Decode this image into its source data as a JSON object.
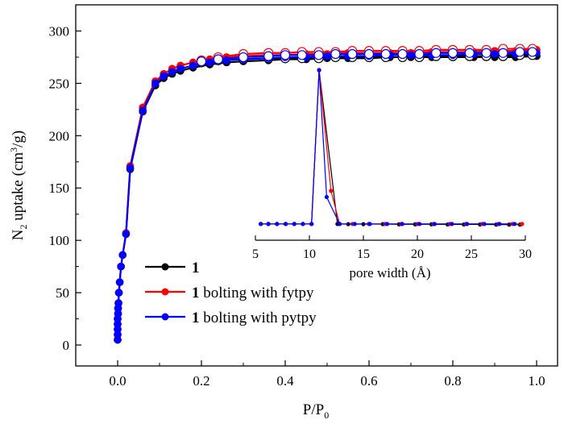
{
  "chart_data": [
    {
      "type": "line",
      "role": "main",
      "xlabel": "P/P",
      "xlabel_sub": "0",
      "ylabel_parts": [
        "N",
        "2",
        " uptake (cm",
        "3",
        "/g)"
      ],
      "xlim": [
        -0.1,
        1.05
      ],
      "ylim": [
        -20,
        325
      ],
      "xticks": [
        0.0,
        0.2,
        0.4,
        0.6,
        0.8,
        1.0
      ],
      "xtick_labels": [
        "0.0",
        "0.2",
        "0.4",
        "0.6",
        "0.8",
        "1.0"
      ],
      "yticks": [
        0,
        50,
        100,
        150,
        200,
        250,
        300
      ],
      "ytick_labels": [
        "0",
        "50",
        "100",
        "150",
        "200",
        "250",
        "300"
      ],
      "legend": {
        "placement": "bottom-left",
        "entries": [
          {
            "prefix": "1",
            "suffix": "",
            "color": "#000000"
          },
          {
            "prefix": "1",
            "suffix": " bolting with fytpy",
            "color": "#ff0000"
          },
          {
            "prefix": "1",
            "suffix": " bolting with pytpy",
            "color": "#0000ff"
          }
        ]
      },
      "series": [
        {
          "name": "1",
          "color": "#000000",
          "adsorption": {
            "x": [
              0.0,
              0.0,
              0.0,
              0.0,
              0.0,
              0.001,
              0.001,
              0.002,
              0.003,
              0.005,
              0.008,
              0.012,
              0.02,
              0.03,
              0.06,
              0.09,
              0.11,
              0.13,
              0.15,
              0.18,
              0.22,
              0.26,
              0.3,
              0.36,
              0.4,
              0.45,
              0.5,
              0.55,
              0.6,
              0.65,
              0.7,
              0.75,
              0.8,
              0.85,
              0.9,
              0.95,
              1.0
            ],
            "y": [
              5,
              10,
              15,
              20,
              25,
              30,
              35,
              40,
              50,
              60,
              75,
              86,
              106,
              168,
              223,
              248,
              255,
              259,
              262,
              265,
              268,
              270,
              271,
              272,
              273,
              273,
              274,
              274,
              274,
              275,
              275,
              275,
              275,
              275,
              275,
              275,
              276
            ]
          },
          "desorption": {
            "x": [
              0.99,
              0.96,
              0.92,
              0.88,
              0.84,
              0.8,
              0.76,
              0.72,
              0.68,
              0.64,
              0.6,
              0.56,
              0.52,
              0.48,
              0.44,
              0.4,
              0.36,
              0.3,
              0.24,
              0.2
            ],
            "y": [
              277,
              277,
              276,
              276,
              276,
              276,
              276,
              275,
              275,
              275,
              275,
              275,
              275,
              274,
              274,
              274,
              274,
              273,
              272,
              270
            ]
          }
        },
        {
          "name": "1 bolting with fytpy",
          "color": "#ff0000",
          "adsorption": {
            "x": [
              0.0,
              0.0,
              0.0,
              0.0,
              0.0,
              0.001,
              0.001,
              0.002,
              0.003,
              0.005,
              0.008,
              0.012,
              0.02,
              0.03,
              0.06,
              0.09,
              0.11,
              0.13,
              0.15,
              0.18,
              0.22,
              0.26,
              0.3,
              0.36,
              0.4,
              0.45,
              0.5,
              0.55,
              0.6,
              0.65,
              0.7,
              0.75,
              0.8,
              0.85,
              0.9,
              0.95,
              1.0
            ],
            "y": [
              5,
              10,
              15,
              20,
              25,
              30,
              35,
              40,
              50,
              60,
              75,
              86,
              107,
              171,
              227,
              252,
              259,
              264,
              267,
              270,
              273,
              275,
              276,
              277,
              277,
              278,
              278,
              279,
              279,
              279,
              279,
              280,
              280,
              280,
              281,
              281,
              282
            ]
          },
          "desorption": {
            "x": [
              0.99,
              0.96,
              0.92,
              0.88,
              0.84,
              0.8,
              0.76,
              0.72,
              0.68,
              0.64,
              0.6,
              0.56,
              0.52,
              0.48,
              0.44,
              0.4,
              0.36,
              0.3,
              0.24,
              0.2
            ],
            "y": [
              283,
              283,
              283,
              282,
              282,
              282,
              282,
              281,
              281,
              281,
              281,
              281,
              280,
              280,
              280,
              279,
              279,
              278,
              275,
              272
            ]
          }
        },
        {
          "name": "1 bolting with pytpy",
          "color": "#0000ff",
          "adsorption": {
            "x": [
              0.0,
              0.0,
              0.0,
              0.0,
              0.0,
              0.001,
              0.001,
              0.002,
              0.003,
              0.005,
              0.008,
              0.012,
              0.02,
              0.03,
              0.06,
              0.09,
              0.11,
              0.13,
              0.15,
              0.18,
              0.22,
              0.26,
              0.3,
              0.36,
              0.4,
              0.45,
              0.5,
              0.55,
              0.6,
              0.65,
              0.7,
              0.75,
              0.8,
              0.85,
              0.9,
              0.95,
              1.0
            ],
            "y": [
              5,
              10,
              15,
              20,
              25,
              30,
              35,
              40,
              50,
              60,
              75,
              86,
              106,
              169,
              224,
              250,
              257,
              261,
              264,
              267,
              270,
              272,
              273,
              274,
              275,
              275,
              276,
              276,
              276,
              277,
              277,
              277,
              277,
              278,
              278,
              278,
              279
            ]
          },
          "desorption": {
            "x": [
              0.99,
              0.96,
              0.92,
              0.88,
              0.84,
              0.8,
              0.76,
              0.72,
              0.68,
              0.64,
              0.6,
              0.56,
              0.52,
              0.48,
              0.44,
              0.4,
              0.36,
              0.3,
              0.24,
              0.2
            ],
            "y": [
              280,
              280,
              279,
              279,
              279,
              279,
              279,
              278,
              278,
              278,
              278,
              278,
              278,
              277,
              277,
              277,
              276,
              275,
              273,
              271
            ]
          }
        }
      ]
    },
    {
      "type": "line",
      "role": "inset",
      "placement": "right-center",
      "xlabel": "pore width (Å)",
      "xlim": [
        5,
        30
      ],
      "ylim": [
        0,
        1
      ],
      "xticks": [
        5,
        10,
        15,
        20,
        25,
        30
      ],
      "xtick_labels": [
        "5",
        "10",
        "15",
        "20",
        "25",
        "30"
      ],
      "series": [
        {
          "name": "1",
          "color": "#000000",
          "x": [
            5.5,
            6.2,
            7.0,
            7.8,
            8.6,
            9.4,
            10.2,
            10.9,
            12.6,
            13.6,
            15.0,
            16.8,
            18.3,
            19.8,
            21.3,
            22.8,
            24.3,
            25.8,
            27.3,
            28.5,
            29.5
          ],
          "y": [
            0.006,
            0.006,
            0.006,
            0.006,
            0.006,
            0.006,
            0.006,
            1.0,
            0.006,
            0.005,
            0.005,
            0.005,
            0.004,
            0.004,
            0.004,
            0.003,
            0.003,
            0.003,
            0.002,
            0.002,
            0.002
          ]
        },
        {
          "name": "1 bolting with fytpy",
          "color": "#ff0000",
          "x": [
            5.5,
            6.2,
            7.0,
            7.8,
            8.6,
            9.4,
            10.2,
            10.9,
            12.0,
            12.8,
            14.0,
            15.5,
            17.0,
            18.5,
            20.0,
            21.5,
            23.0,
            24.5,
            26.0,
            27.5,
            28.8,
            29.7
          ],
          "y": [
            0.006,
            0.006,
            0.006,
            0.006,
            0.006,
            0.006,
            0.006,
            1.0,
            0.22,
            0.006,
            0.006,
            0.006,
            0.006,
            0.006,
            0.006,
            0.006,
            0.006,
            0.006,
            0.006,
            0.006,
            0.006,
            0.006
          ]
        },
        {
          "name": "1 bolting with pytpy",
          "color": "#0000ff",
          "x": [
            5.5,
            6.2,
            7.0,
            7.8,
            8.6,
            9.4,
            10.2,
            10.9,
            11.6,
            12.8,
            14.2,
            15.6,
            17.2,
            18.6,
            20.2,
            21.6,
            23.2,
            24.6,
            26.2,
            27.6,
            29.0
          ],
          "y": [
            0.006,
            0.006,
            0.006,
            0.006,
            0.006,
            0.006,
            0.006,
            1.0,
            0.18,
            0.006,
            0.006,
            0.006,
            0.006,
            0.006,
            0.006,
            0.006,
            0.006,
            0.006,
            0.006,
            0.006,
            0.006
          ]
        }
      ]
    }
  ]
}
